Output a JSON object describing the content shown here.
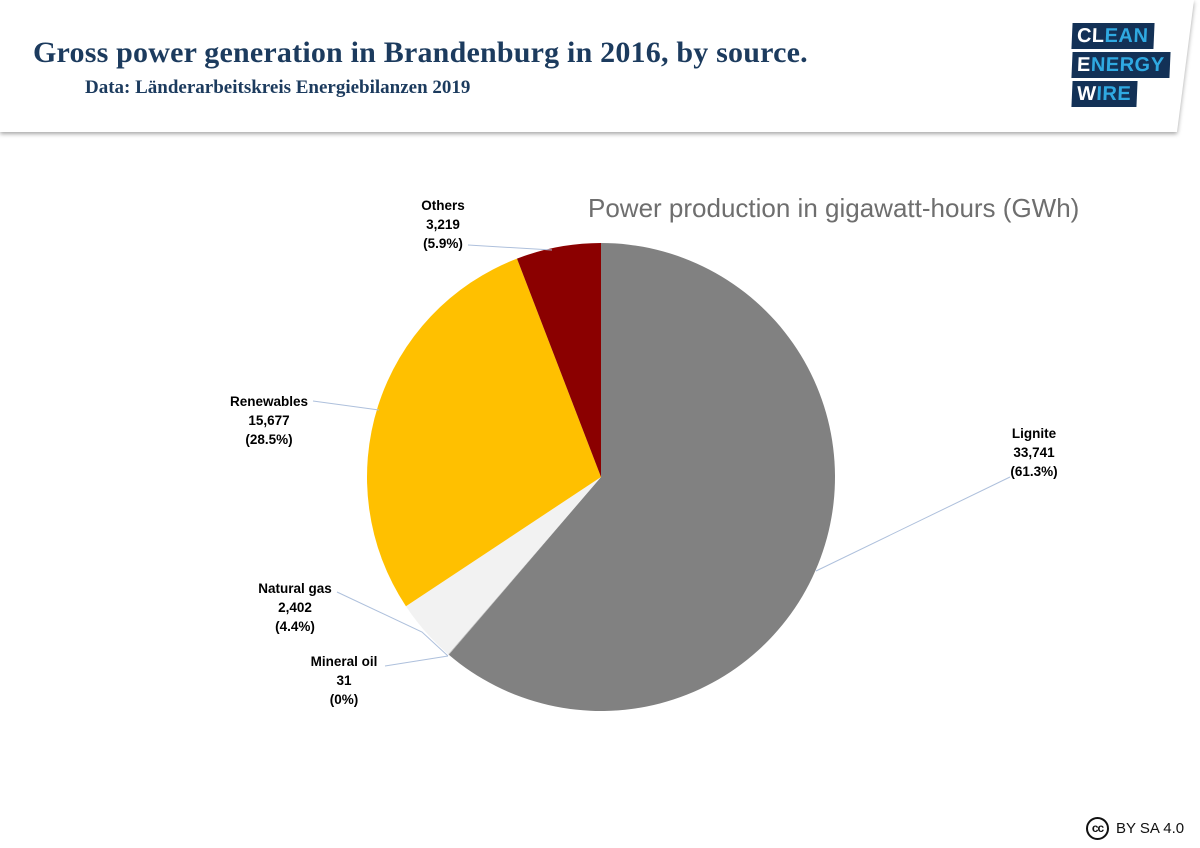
{
  "header": {
    "title": "Gross power generation in Brandenburg in 2016, by source.",
    "subtitle": "Data: Länderarbeitskreis Energiebilanzen 2019"
  },
  "logo": {
    "name": "Clean Energy Wire",
    "navy": "#133156",
    "cyan": "#2fa9e1",
    "rows": [
      {
        "white": "CL",
        "cyan": "EAN"
      },
      {
        "white": "E",
        "cyan": "NERGY"
      },
      {
        "white": "W",
        "cyan": "IRE"
      }
    ]
  },
  "chart_data": {
    "type": "pie",
    "title": "Power production in gigawatt-hours (GWh)",
    "unit": "GWh",
    "start_angle_deg": 0,
    "direction": "clockwise",
    "slices": [
      {
        "label": "Lignite",
        "value": 33741,
        "value_text": "33,741",
        "pct_text": "(61.3%)",
        "pct": 61.3,
        "color": "#818181"
      },
      {
        "label": "Mineral oil",
        "value": 31,
        "value_text": "31",
        "pct_text": "(0%)",
        "pct": 0.0,
        "color": "#bfbfbf"
      },
      {
        "label": "Natural gas",
        "value": 2402,
        "value_text": "2,402",
        "pct_text": "(4.4%)",
        "pct": 4.4,
        "color": "#f2f2f2"
      },
      {
        "label": "Renewables",
        "value": 15677,
        "value_text": "15,677",
        "pct_text": "(28.5%)",
        "pct": 28.5,
        "color": "#ffc000"
      },
      {
        "label": "Others",
        "value": 3219,
        "value_text": "3,219",
        "pct_text": "(5.9%)",
        "pct": 5.9,
        "color": "#8b0000"
      }
    ],
    "leader_line_color": "#aec0dc"
  },
  "footer": {
    "license_icon": "cc",
    "license_text": "BY SA 4.0"
  }
}
